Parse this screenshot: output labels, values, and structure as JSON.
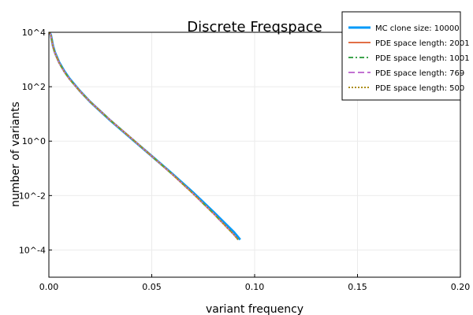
{
  "chart_data": {
    "type": "line",
    "title": "Discrete Freqspace",
    "xlabel": "variant frequency",
    "ylabel": "number of variants",
    "xlim": [
      0,
      0.2
    ],
    "ylim_log10": [
      -5,
      4
    ],
    "yscale": "log",
    "grid": true,
    "legend_position": "top-right",
    "x_ticks": [
      {
        "value": 0.0,
        "label": "0.00"
      },
      {
        "value": 0.05,
        "label": "0.05"
      },
      {
        "value": 0.1,
        "label": "0.10"
      },
      {
        "value": 0.15,
        "label": "0.15"
      },
      {
        "value": 0.2,
        "label": "0.20"
      }
    ],
    "y_ticks": [
      {
        "value_log10": 4,
        "label": "10^4"
      },
      {
        "value_log10": 2,
        "label": "10^2"
      },
      {
        "value_log10": 0,
        "label": "10^0"
      },
      {
        "value_log10": -2,
        "label": "10^-2"
      },
      {
        "value_log10": -4,
        "label": "10^-4"
      }
    ],
    "series": [
      {
        "name": "MC clone size: 10000",
        "color": "#009af9",
        "width": 3,
        "dash": "",
        "x": [
          0.0003,
          0.001,
          0.002,
          0.003,
          0.005,
          0.0075,
          0.01,
          0.015,
          0.02,
          0.03,
          0.04,
          0.05,
          0.06,
          0.07,
          0.08,
          0.09,
          0.093
        ],
        "y_log10": [
          4.0,
          3.9,
          3.5,
          3.25,
          2.9,
          2.57,
          2.3,
          1.85,
          1.45,
          0.75,
          0.1,
          -0.55,
          -1.2,
          -1.88,
          -2.6,
          -3.35,
          -3.62
        ]
      },
      {
        "name": "PDE space length: 2001",
        "color": "#e26f46",
        "width": 2,
        "dash": "",
        "x": [
          0.0003,
          0.001,
          0.002,
          0.003,
          0.005,
          0.0075,
          0.01,
          0.015,
          0.02,
          0.03,
          0.04,
          0.05,
          0.06,
          0.07,
          0.08,
          0.09,
          0.092
        ],
        "y_log10": [
          4.0,
          3.88,
          3.48,
          3.23,
          2.88,
          2.55,
          2.28,
          1.84,
          1.45,
          0.76,
          0.11,
          -0.55,
          -1.22,
          -1.92,
          -2.66,
          -3.44,
          -3.62
        ]
      },
      {
        "name": "PDE space length: 1001",
        "color": "#3da44d",
        "width": 2,
        "dash": "6,3,2,3",
        "x": [
          0.0003,
          0.001,
          0.002,
          0.003,
          0.005,
          0.0075,
          0.01,
          0.015,
          0.02,
          0.03,
          0.04,
          0.05,
          0.06,
          0.07,
          0.08,
          0.09,
          0.092
        ],
        "y_log10": [
          4.0,
          3.88,
          3.48,
          3.23,
          2.88,
          2.55,
          2.28,
          1.84,
          1.45,
          0.76,
          0.11,
          -0.55,
          -1.22,
          -1.92,
          -2.66,
          -3.44,
          -3.62
        ]
      },
      {
        "name": "PDE space length: 769",
        "color": "#c271d2",
        "width": 2,
        "dash": "8,4",
        "x": [
          0.0003,
          0.001,
          0.002,
          0.003,
          0.005,
          0.0075,
          0.01,
          0.015,
          0.02,
          0.03,
          0.04,
          0.05,
          0.06,
          0.07,
          0.08,
          0.09,
          0.092
        ],
        "y_log10": [
          4.0,
          3.88,
          3.48,
          3.23,
          2.88,
          2.55,
          2.28,
          1.84,
          1.45,
          0.76,
          0.11,
          -0.55,
          -1.22,
          -1.92,
          -2.66,
          -3.44,
          -3.62
        ]
      },
      {
        "name": "PDE space length: 500",
        "color": "#ac8d18",
        "width": 2,
        "dash": "2,2",
        "x": [
          0.0003,
          0.001,
          0.002,
          0.003,
          0.005,
          0.0075,
          0.01,
          0.015,
          0.02,
          0.03,
          0.04,
          0.05,
          0.06,
          0.07,
          0.08,
          0.09,
          0.092
        ],
        "y_log10": [
          4.0,
          3.88,
          3.48,
          3.23,
          2.88,
          2.55,
          2.28,
          1.84,
          1.45,
          0.76,
          0.11,
          -0.55,
          -1.22,
          -1.92,
          -2.66,
          -3.44,
          -3.62
        ]
      }
    ]
  }
}
